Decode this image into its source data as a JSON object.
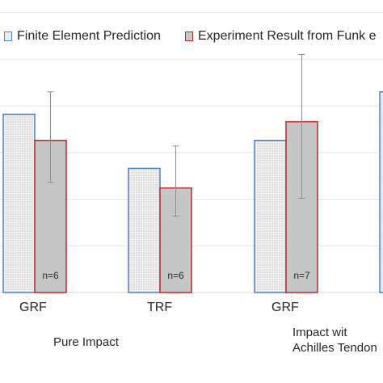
{
  "chart_data": {
    "type": "bar",
    "legend": [
      {
        "label": "Finite Element Prediction",
        "fill": "#e4e4e4",
        "stroke": "#4a84c4",
        "pattern": "dots"
      },
      {
        "label": "Experiment Result from Funk e",
        "fill": "#c6c6c6",
        "stroke": "#c0272d",
        "pattern": "solid"
      }
    ],
    "categories": [
      "GRF",
      "TRF",
      "GRF",
      ""
    ],
    "group_labels": [
      "Pure Impact",
      "Impact wit\nAchilles Tendon"
    ],
    "series": [
      {
        "name": "Finite Element Prediction",
        "values": [
          1.91,
          1.33,
          1.63,
          2.15
        ]
      },
      {
        "name": "Experiment Result from Funk e",
        "values": [
          1.63,
          1.12,
          1.83,
          null
        ],
        "error_low": [
          1.18,
          0.82,
          1.01,
          null
        ],
        "error_high": [
          2.15,
          1.57,
          2.55,
          null
        ],
        "n_labels": [
          "n=6",
          "n=6",
          "n=7",
          ""
        ]
      }
    ],
    "ylim": [
      0,
      3.1
    ],
    "grid": true,
    "legend_position": "top"
  }
}
